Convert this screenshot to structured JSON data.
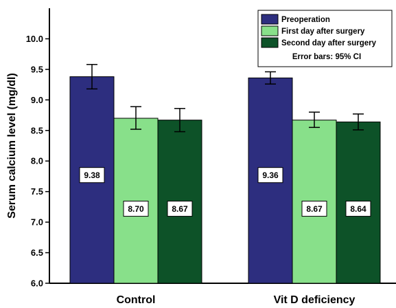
{
  "chart_data": {
    "type": "bar",
    "categories": [
      "Control",
      "Vit D deficiency"
    ],
    "ylabel": "Serum calcium level (mg/dl)",
    "xlabel": "",
    "ylim": [
      6.0,
      10.5
    ],
    "yticks": [
      "6.0",
      "6.5",
      "7.0",
      "7.5",
      "8.0",
      "8.5",
      "9.0",
      "9.5",
      "10.0"
    ],
    "series": [
      {
        "name": "Preoperation",
        "color": "#2d2e7f",
        "values": [
          9.38,
          9.36
        ],
        "labels": [
          "9.38",
          "9.36"
        ],
        "ci_low": [
          9.18,
          9.26
        ],
        "ci_high": [
          9.58,
          9.46
        ]
      },
      {
        "name": "First day after surgery",
        "color": "#88e08a",
        "values": [
          8.7,
          8.67
        ],
        "labels": [
          "8.70",
          "8.67"
        ],
        "ci_low": [
          8.52,
          8.55
        ],
        "ci_high": [
          8.89,
          8.8
        ]
      },
      {
        "name": "Second day after surgery",
        "color": "#0d5228",
        "values": [
          8.67,
          8.64
        ],
        "labels": [
          "8.67",
          "8.64"
        ],
        "ci_low": [
          8.48,
          8.51
        ],
        "ci_high": [
          8.86,
          8.77
        ]
      }
    ],
    "legend": {
      "placement": "top-right",
      "note": "Error bars: 95% CI"
    },
    "grid": false
  }
}
